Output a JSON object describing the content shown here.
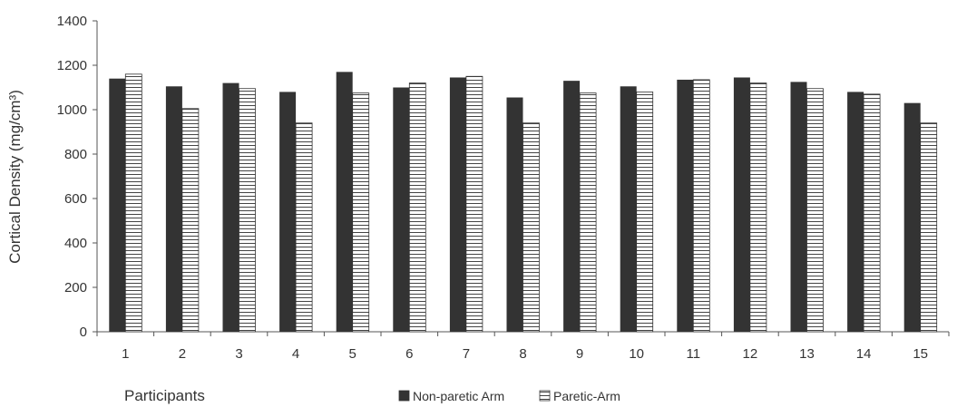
{
  "chart_data": {
    "type": "bar",
    "ylabel": "Cortical Density (mg/cm³)",
    "xlabel": "Participants",
    "ylim": [
      0,
      1400
    ],
    "yticks": [
      0,
      200,
      400,
      600,
      800,
      1000,
      1200,
      1400
    ],
    "categories": [
      "1",
      "2",
      "3",
      "4",
      "5",
      "6",
      "7",
      "8",
      "9",
      "10",
      "11",
      "12",
      "13",
      "14",
      "15"
    ],
    "series": [
      {
        "name": "Non-paretic  Arm",
        "style": "solid-dark",
        "color": "#333333",
        "values": [
          1140,
          1105,
          1120,
          1080,
          1170,
          1100,
          1145,
          1055,
          1130,
          1105,
          1135,
          1145,
          1125,
          1080,
          1030
        ]
      },
      {
        "name": "Paretic-Arm",
        "style": "horizontal-hatch",
        "color": "#ffffff",
        "values": [
          1160,
          1005,
          1095,
          940,
          1075,
          1120,
          1150,
          940,
          1075,
          1080,
          1135,
          1120,
          1095,
          1070,
          940
        ]
      }
    ],
    "grid": false,
    "legend_position": "bottom"
  }
}
